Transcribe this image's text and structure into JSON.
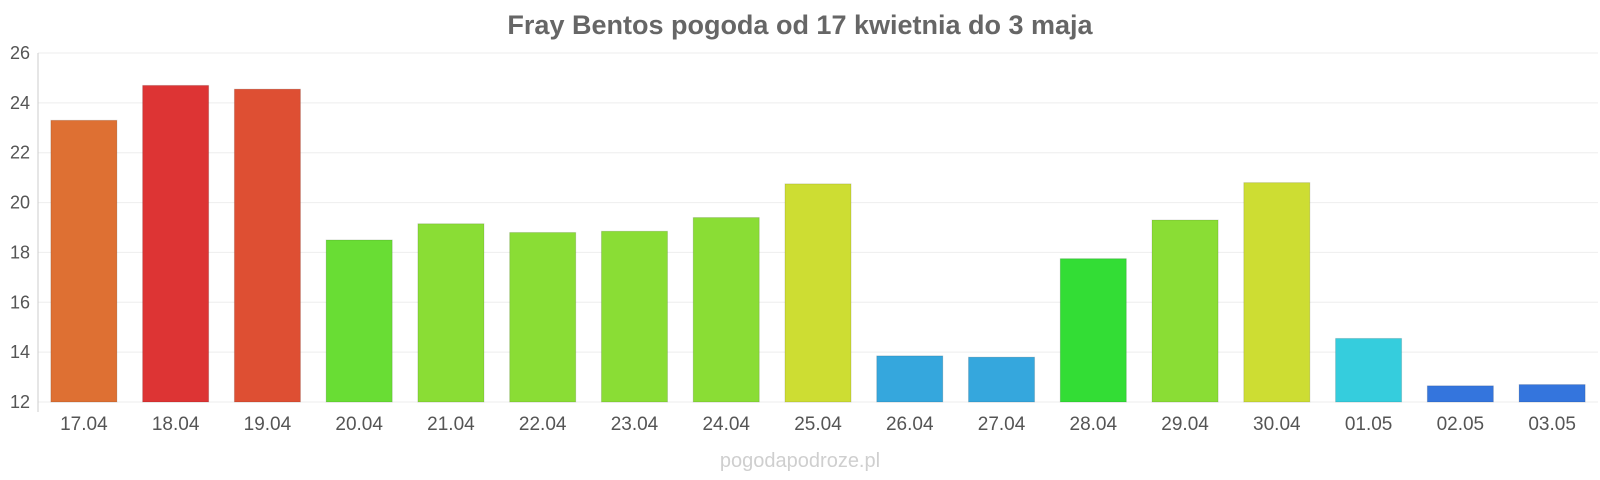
{
  "chart_data": {
    "type": "bar",
    "title": "Fray Bentos pogoda od 17 kwietnia do 3 maja",
    "xlabel": "",
    "ylabel": "",
    "ylim": [
      12,
      26
    ],
    "yticks": [
      12,
      14,
      16,
      18,
      20,
      22,
      24,
      26
    ],
    "grid": true,
    "categories": [
      "17.04",
      "18.04",
      "19.04",
      "20.04",
      "21.04",
      "22.04",
      "23.04",
      "24.04",
      "25.04",
      "26.04",
      "27.04",
      "28.04",
      "29.04",
      "30.04",
      "01.05",
      "02.05",
      "03.05"
    ],
    "values": [
      23.3,
      24.7,
      24.55,
      18.5,
      19.15,
      18.8,
      18.85,
      19.4,
      20.75,
      13.85,
      13.8,
      17.75,
      19.3,
      20.8,
      14.55,
      12.65,
      12.7
    ],
    "colors": [
      "#de7033",
      "#dd3434",
      "#de4f33",
      "#69dd34",
      "#8add35",
      "#8add35",
      "#8add35",
      "#8add35",
      "#cddd33",
      "#35a7dd",
      "#35a7dd",
      "#33dd35",
      "#8add35",
      "#cddd33",
      "#35cddd",
      "#3475dd",
      "#3475dd"
    ]
  },
  "watermark": "pogodapodroze.pl"
}
